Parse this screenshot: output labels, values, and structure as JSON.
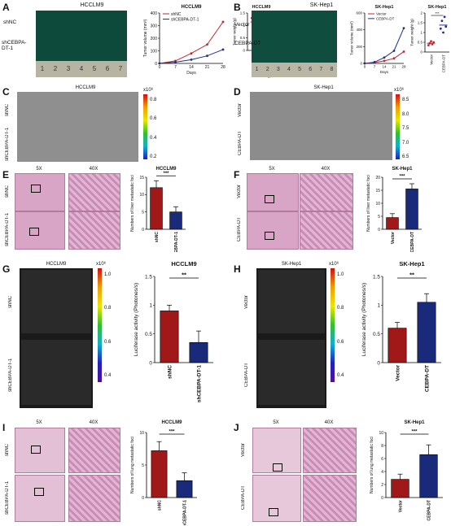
{
  "panels": {
    "A": {
      "letter": "A",
      "title": "HCCLM9",
      "rows": [
        "shNC",
        "shCEBPA-DT-1"
      ],
      "ruler": [
        "1",
        "2",
        "3",
        "4",
        "5",
        "6",
        "7"
      ]
    },
    "B": {
      "letter": "B",
      "title": "SK-Hep1",
      "rows": [
        "Vector",
        "CEBPA-DT"
      ],
      "ruler": [
        "1",
        "2",
        "3",
        "4",
        "5",
        "6",
        "7",
        "8"
      ]
    },
    "C": {
      "letter": "C",
      "title": "HCCLM9",
      "rows": [
        "shNC",
        "shCEBPA-DT-1"
      ],
      "scale_exp": "x10⁶",
      "scale_ticks": [
        "0.8",
        "0.6",
        "0.4",
        "0.2"
      ]
    },
    "D": {
      "letter": "D",
      "title": "SK-Hep1",
      "rows": [
        "Vector",
        "CEBPA-DT"
      ],
      "scale_exp": "x10⁶",
      "scale_ticks": [
        "8.5",
        "8.0",
        "7.5",
        "7.0",
        "6.5"
      ]
    },
    "E": {
      "letter": "E",
      "mag": [
        "5X",
        "40X"
      ],
      "rows": [
        "shNC",
        "shCEBPA-DT-1"
      ]
    },
    "F": {
      "letter": "F",
      "mag": [
        "5X",
        "40X"
      ],
      "rows": [
        "Vector",
        "CEBPA-DT"
      ]
    },
    "G": {
      "letter": "G",
      "title": "HCCLM9",
      "rows": [
        "shNC",
        "shCEBPA-DT-1"
      ],
      "scale_exp": "x10⁶",
      "scale_ticks": [
        "1.0",
        "0.8",
        "0.6",
        "0.4"
      ]
    },
    "H": {
      "letter": "H",
      "title": "SK-Hep1",
      "rows": [
        "Vector",
        "CEBPA-DT"
      ],
      "scale_exp": "x10⁶",
      "scale_ticks": [
        "1.0",
        "0.8",
        "0.6",
        "0.4"
      ]
    },
    "I": {
      "letter": "I",
      "mag": [
        "5X",
        "40X"
      ],
      "rows": [
        "shNC",
        "shCEBPA-DT-1"
      ]
    },
    "J": {
      "letter": "J",
      "mag": [
        "5X",
        "40X"
      ],
      "rows": [
        "Vector",
        "CEBPA-DT"
      ]
    }
  },
  "chart_data": [
    {
      "id": "A-volume",
      "type": "line",
      "title": "HCCLM9",
      "xlabel": "Days",
      "ylabel": "Tumor volume (mm³)",
      "x": [
        7,
        14,
        21,
        28
      ],
      "ylim": [
        0,
        400
      ],
      "yticks": [
        0,
        100,
        200,
        300,
        400
      ],
      "series": [
        {
          "name": "shNC",
          "color": "#c0272d",
          "values": [
            20,
            80,
            150,
            330
          ]
        },
        {
          "name": "shCEBPA-DT-1",
          "color": "#1f2f8a",
          "values": [
            10,
            30,
            60,
            110
          ]
        }
      ]
    },
    {
      "id": "A-weight",
      "type": "scatter",
      "title": "HCCLM9",
      "ylabel": "Tumor weight (g)",
      "categories": [
        "shNC",
        "shCEBPA-DT-1"
      ],
      "ylim": [
        0,
        1.5
      ],
      "yticks": [
        0,
        0.5,
        1.0,
        1.5
      ],
      "sig": "***",
      "series": [
        {
          "name": "shNC",
          "color": "#c0272d",
          "values": [
            1.3,
            1.2,
            1.1,
            0.75,
            1.35
          ]
        },
        {
          "name": "shCEBPA-DT-1",
          "color": "#1f2f8a",
          "values": [
            0.35,
            0.25,
            0.4,
            0.45,
            0.3
          ]
        }
      ]
    },
    {
      "id": "B-volume",
      "type": "line",
      "title": "SK-Hep1",
      "xlabel": "Days",
      "ylabel": "Tumor volume (mm³)",
      "x": [
        7,
        14,
        21,
        28
      ],
      "ylim": [
        0,
        600
      ],
      "yticks": [
        0,
        200,
        400,
        600
      ],
      "series": [
        {
          "name": "Vector",
          "color": "#c0272d",
          "values": [
            10,
            30,
            60,
            140
          ]
        },
        {
          "name": "CEBPA-DT",
          "color": "#1f2f8a",
          "values": [
            15,
            70,
            150,
            420
          ]
        }
      ]
    },
    {
      "id": "B-weight",
      "type": "scatter",
      "title": "SK-Hep1",
      "ylabel": "Tumor weight (g)",
      "categories": [
        "Vector",
        "CEBPA-DT"
      ],
      "ylim": [
        0,
        2.0
      ],
      "yticks": [
        0,
        0.5,
        1.0,
        1.5,
        2.0
      ],
      "sig": "***",
      "series": [
        {
          "name": "Vector",
          "color": "#c0272d",
          "values": [
            0.35,
            0.45,
            0.55,
            0.4,
            0.5
          ]
        },
        {
          "name": "CEBPA-DT",
          "color": "#1f2f8a",
          "values": [
            1.2,
            1.6,
            1.0,
            1.8,
            1.3
          ]
        }
      ]
    },
    {
      "id": "E-bar",
      "type": "bar",
      "title": "HCCLM9",
      "ylabel": "Numbers of liver metastatic foci",
      "categories": [
        "shNC",
        "shCEBPA-DT-1"
      ],
      "ylim": [
        0,
        15
      ],
      "yticks": [
        0,
        5,
        10,
        15
      ],
      "sig": "***",
      "values": [
        12,
        5
      ],
      "errors": [
        2,
        1.5
      ],
      "colors": [
        "#a01818",
        "#1a2a7a"
      ]
    },
    {
      "id": "F-bar",
      "type": "bar",
      "title": "SK-Hep1",
      "ylabel": "Numbers of liver metastatic foci",
      "categories": [
        "Vector",
        "CEBPA-DT"
      ],
      "ylim": [
        0,
        20
      ],
      "yticks": [
        0,
        5,
        10,
        15,
        20
      ],
      "sig": "***",
      "values": [
        4.5,
        15.5
      ],
      "errors": [
        1.5,
        2
      ],
      "colors": [
        "#a01818",
        "#1a2a7a"
      ]
    },
    {
      "id": "G-bar",
      "type": "bar",
      "title": "HCCLM9",
      "ylabel": "Luciferase activity (Photones/s)",
      "categories": [
        "shNC",
        "shCEBPA-DT-1"
      ],
      "ylim": [
        0,
        1.5
      ],
      "yticks": [
        0,
        0.5,
        1.0,
        1.5
      ],
      "sig": "**",
      "values": [
        0.9,
        0.35
      ],
      "errors": [
        0.1,
        0.2
      ],
      "colors": [
        "#a01818",
        "#1a2a7a"
      ]
    },
    {
      "id": "H-bar",
      "type": "bar",
      "title": "SK-Hep1",
      "ylabel": "Luciferase activity (Photones/s)",
      "categories": [
        "Vector",
        "CEBPA-DT"
      ],
      "ylim": [
        0,
        1.5
      ],
      "yticks": [
        0,
        0.5,
        1.0,
        1.5
      ],
      "sig": "**",
      "values": [
        0.6,
        1.05
      ],
      "errors": [
        0.1,
        0.15
      ],
      "colors": [
        "#a01818",
        "#1a2a7a"
      ]
    },
    {
      "id": "I-bar",
      "type": "bar",
      "title": "HCCLM9",
      "ylabel": "Numbers of lung metastatic foci",
      "categories": [
        "shNC",
        "shCEBPA-DT-1"
      ],
      "ylim": [
        0,
        10
      ],
      "yticks": [
        0,
        5,
        10
      ],
      "sig": "***",
      "values": [
        7.2,
        2.6
      ],
      "errors": [
        1.4,
        1.2
      ],
      "colors": [
        "#a01818",
        "#1a2a7a"
      ]
    },
    {
      "id": "J-bar",
      "type": "bar",
      "title": "SK-Hep1",
      "ylabel": "Numbers of lung metastatic foci",
      "categories": [
        "Vector",
        "CEBPA-DT"
      ],
      "ylim": [
        0,
        10
      ],
      "yticks": [
        0,
        2,
        4,
        6,
        8,
        10
      ],
      "sig": "***",
      "values": [
        2.8,
        6.6
      ],
      "errors": [
        0.8,
        1.5
      ],
      "colors": [
        "#a01818",
        "#1a2a7a"
      ]
    }
  ]
}
